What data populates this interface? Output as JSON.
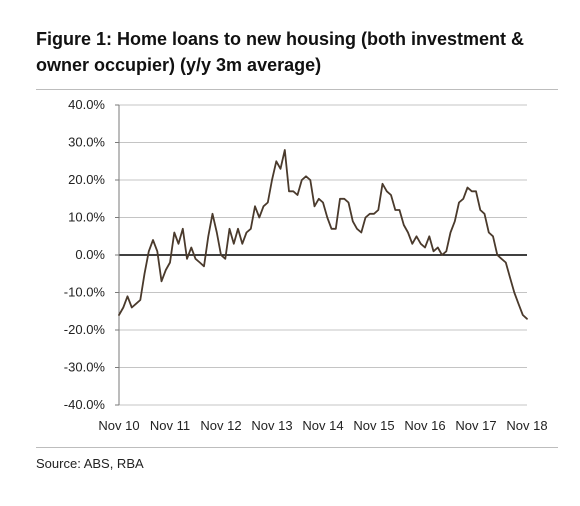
{
  "header": {
    "title": "Figure 1: Home loans to new housing (both investment & owner occupier) (y/y 3m average)"
  },
  "footer": {
    "source": "Source:  ABS, RBA"
  },
  "chart_data": {
    "type": "line",
    "title": "Figure 1: Home loans to new housing (both investment & owner occupier) (y/y 3m average)",
    "xlabel": "",
    "ylabel": "",
    "ylim": [
      -40,
      40
    ],
    "xlim": [
      0,
      96
    ],
    "grid": true,
    "legend": "none",
    "line_color": "#4a3a2c",
    "y_ticks": [
      40,
      30,
      20,
      10,
      0,
      -10,
      -20,
      -30,
      -40
    ],
    "y_tick_labels": [
      "40.0%",
      "30.0%",
      "20.0%",
      "10.0%",
      "0.0%",
      "-10.0%",
      "-20.0%",
      "-30.0%",
      "-40.0%"
    ],
    "x_ticks": [
      0,
      12,
      24,
      36,
      48,
      60,
      72,
      84,
      96
    ],
    "x_tick_labels": [
      "Nov 10",
      "Nov 11",
      "Nov 12",
      "Nov 13",
      "Nov 14",
      "Nov 15",
      "Nov 16",
      "Nov 17",
      "Nov 18"
    ],
    "series": [
      {
        "x": [
          0,
          1,
          2,
          3,
          4,
          5,
          6,
          7,
          8,
          9,
          10,
          11,
          12,
          13,
          14,
          15,
          16,
          17,
          18,
          19,
          20,
          21,
          22,
          23,
          24,
          25,
          26,
          27,
          28,
          29,
          30,
          31,
          32,
          33,
          34,
          35,
          36,
          37,
          38,
          39,
          40,
          41,
          42,
          43,
          44,
          45,
          46,
          47,
          48,
          49,
          50,
          51,
          52,
          53,
          54,
          55,
          56,
          57,
          58,
          59,
          60,
          61,
          62,
          63,
          64,
          65,
          66,
          67,
          68,
          69,
          70,
          71,
          72,
          73,
          74,
          75,
          76,
          77,
          78,
          79,
          80,
          81,
          82,
          83,
          84,
          85,
          86,
          87,
          88,
          89,
          90,
          91,
          92,
          93,
          94,
          95,
          96
        ],
        "values": [
          -16,
          -14,
          -11,
          -14,
          -13,
          -12,
          -5,
          1,
          4,
          1,
          -7,
          -4,
          -2,
          6,
          3,
          7,
          -1,
          2,
          -1,
          -2,
          -3,
          5,
          11,
          6,
          0,
          -1,
          7,
          3,
          7,
          3,
          6,
          7,
          13,
          10,
          13,
          14,
          20,
          25,
          23,
          28,
          17,
          17,
          16,
          20,
          21,
          20,
          13,
          15,
          14,
          10,
          7,
          7,
          15,
          15,
          14,
          9,
          7,
          6,
          10,
          11,
          11,
          12,
          19,
          17,
          16,
          12,
          12,
          8,
          6,
          3,
          5,
          3,
          2,
          5,
          1,
          2,
          0,
          1,
          6,
          9,
          14,
          15,
          18,
          17,
          17,
          12,
          11,
          6,
          5,
          0,
          -1,
          -2,
          -6,
          -10,
          -13,
          -16,
          -17
        ]
      }
    ]
  }
}
